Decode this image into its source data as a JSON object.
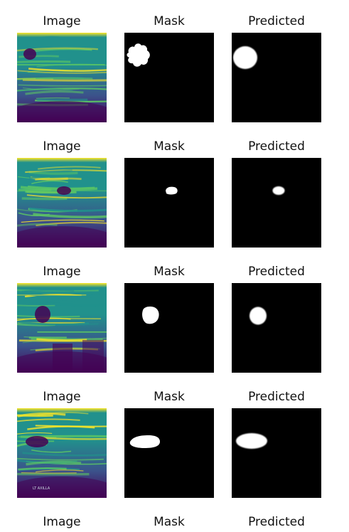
{
  "column_titles": [
    "Image",
    "Mask",
    "Predicted"
  ],
  "rows": [
    {
      "image_overlay_text": ""
    },
    {
      "image_overlay_text": ""
    },
    {
      "image_overlay_text": ""
    },
    {
      "image_overlay_text": "LT AXILLA"
    },
    {
      "image_overlay_text": ""
    }
  ],
  "colors": {
    "background": "#ffffff",
    "mask_background": "#000000",
    "mask_foreground": "#ffffff",
    "viridis_dark": "#440154",
    "viridis_blue": "#3b528b",
    "viridis_teal": "#21918c",
    "viridis_green": "#5ec962",
    "viridis_yellow": "#fde725"
  }
}
